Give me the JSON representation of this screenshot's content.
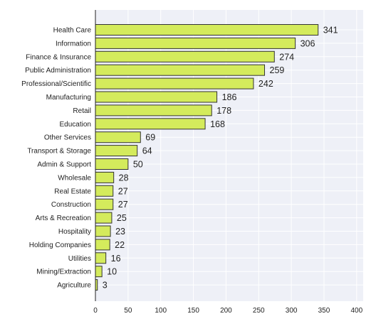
{
  "chart_data": {
    "type": "bar",
    "orientation": "horizontal",
    "title": "",
    "xlabel": "",
    "ylabel": "",
    "categories": [
      "Health Care",
      "Information",
      "Finance & Insurance",
      "Public Administration",
      "Professional/Scientific",
      "Manufacturing",
      "Retail",
      "Education",
      "Other Services",
      "Transport & Storage",
      "Admin & Support",
      "Wholesale",
      "Real Estate",
      "Construction",
      "Arts & Recreation",
      "Hospitality",
      "Holding Companies",
      "Utilities",
      "Mining/Extraction",
      "Agriculture"
    ],
    "values": [
      341,
      306,
      274,
      259,
      242,
      186,
      178,
      168,
      69,
      64,
      50,
      28,
      27,
      27,
      25,
      23,
      22,
      16,
      10,
      3
    ],
    "xlim": [
      0,
      410
    ],
    "xticks": [
      0,
      50,
      100,
      150,
      200,
      250,
      300,
      350,
      400
    ],
    "grid": true,
    "legend": "none",
    "colors": {
      "bar_fill": "#d4eb5c",
      "bar_edge": "#333333",
      "plot_background": "#eef0f7",
      "grid": "#ffffff",
      "axis": "#222222",
      "text": "#222222"
    }
  }
}
